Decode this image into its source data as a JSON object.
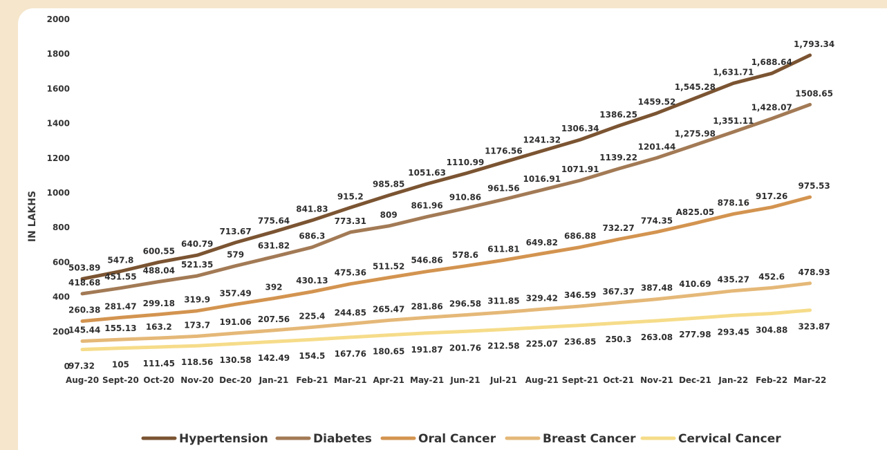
{
  "chart_data": {
    "type": "line",
    "ylabel": "IN LAKHS",
    "xlabel": "",
    "ylim": [
      0,
      2000
    ],
    "yticks": [
      0,
      200,
      400,
      600,
      800,
      1000,
      1200,
      1400,
      1600,
      1800,
      2000
    ],
    "grid": false,
    "legend_position": "bottom",
    "categories": [
      "Aug-20",
      "Sept-20",
      "Oct-20",
      "Nov-20",
      "Dec-20",
      "Jan-21",
      "Feb-21",
      "Mar-21",
      "Apr-21",
      "May-21",
      "Jun-21",
      "Jul-21",
      "Aug-21",
      "Sept-21",
      "Oct-21",
      "Nov-21",
      "Dec-21",
      "Jan-22",
      "Feb-22",
      "Mar-22"
    ],
    "series": [
      {
        "name": "Hypertension",
        "color": "#7b5432",
        "values": [
          503.89,
          547.8,
          600.55,
          640.79,
          713.67,
          775.64,
          841.83,
          915.2,
          985.85,
          1051.63,
          1110.99,
          1176.56,
          1241.32,
          1306.34,
          1386.25,
          1459.52,
          1545.28,
          1631.71,
          1688.64,
          1793.34
        ],
        "labels": [
          "503.89",
          "547.8",
          "600.55",
          "640.79",
          "713.67",
          "775.64",
          "841.83",
          "915.2",
          "985.85",
          "1051.63",
          "1110.99",
          "1176.56",
          "1241.32",
          "1306.34",
          "1386.25",
          "1459.52",
          "1,545.28",
          "1,631.71",
          "1,688.64",
          "1,793.34"
        ]
      },
      {
        "name": "Diabetes",
        "color": "#a27a55",
        "values": [
          418.68,
          451.55,
          488.04,
          521.35,
          579,
          631.82,
          686.3,
          773.31,
          809,
          861.96,
          910.86,
          961.56,
          1016.91,
          1071.91,
          1139.22,
          1201.44,
          1275.98,
          1351.11,
          1428.07,
          1508.65
        ],
        "labels": [
          "418.68",
          "451.55",
          "488.04",
          "521.35",
          "579",
          "631.82",
          "686.3",
          "773.31",
          "809",
          "861.96",
          "910.86",
          "961.56",
          "1016.91",
          "1071.91",
          "1139.22",
          "1201.44",
          "1,275.98",
          "1,351.11",
          "1,428.07",
          "1508.65"
        ]
      },
      {
        "name": "Oral Cancer",
        "color": "#d39450",
        "values": [
          260.38,
          281.47,
          299.18,
          319.9,
          357.49,
          392,
          430.13,
          475.36,
          511.52,
          546.86,
          578.6,
          611.81,
          649.82,
          686.88,
          732.27,
          774.35,
          825.05,
          878.16,
          917.26,
          975.53
        ],
        "labels": [
          "260.38",
          "281.47",
          "299.18",
          "319.9",
          "357.49",
          "392",
          "430.13",
          "475.36",
          "511.52",
          "546.86",
          "578.6",
          "611.81",
          "649.82",
          "686.88",
          "732.27",
          "774.35",
          "A825.05",
          "878.16",
          "917.26",
          "975.53"
        ]
      },
      {
        "name": "Breast Cancer",
        "color": "#e5b878",
        "values": [
          145.44,
          155.13,
          163.2,
          173.7,
          191.06,
          207.56,
          225.4,
          244.85,
          265.47,
          281.86,
          296.58,
          311.85,
          329.42,
          346.59,
          367.37,
          387.48,
          410.69,
          435.27,
          452.6,
          478.93
        ],
        "labels": [
          "145.44",
          "155.13",
          "163.2",
          "173.7",
          "191.06",
          "207.56",
          "225.4",
          "244.85",
          "265.47",
          "281.86",
          "296.58",
          "311.85",
          "329.42",
          "346.59",
          "367.37",
          "387.48",
          "410.69",
          "435.27",
          "452.6",
          "478.93"
        ]
      },
      {
        "name": "Cervical Cancer",
        "color": "#f6dc8a",
        "values": [
          97.32,
          105,
          111.45,
          118.56,
          130.58,
          142.49,
          154.5,
          167.76,
          180.65,
          191.87,
          201.76,
          212.58,
          225.07,
          236.85,
          250.3,
          263.08,
          277.98,
          293.45,
          304.88,
          323.87
        ],
        "labels": [
          "97.32",
          "105",
          "111.45",
          "118.56",
          "130.58",
          "142.49",
          "154.5",
          "167.76",
          "180.65",
          "191.87",
          "201.76",
          "212.58",
          "225.07",
          "236.85",
          "250.3",
          "263.08",
          "277.98",
          "293.45",
          "304.88",
          "323.87"
        ]
      }
    ]
  }
}
